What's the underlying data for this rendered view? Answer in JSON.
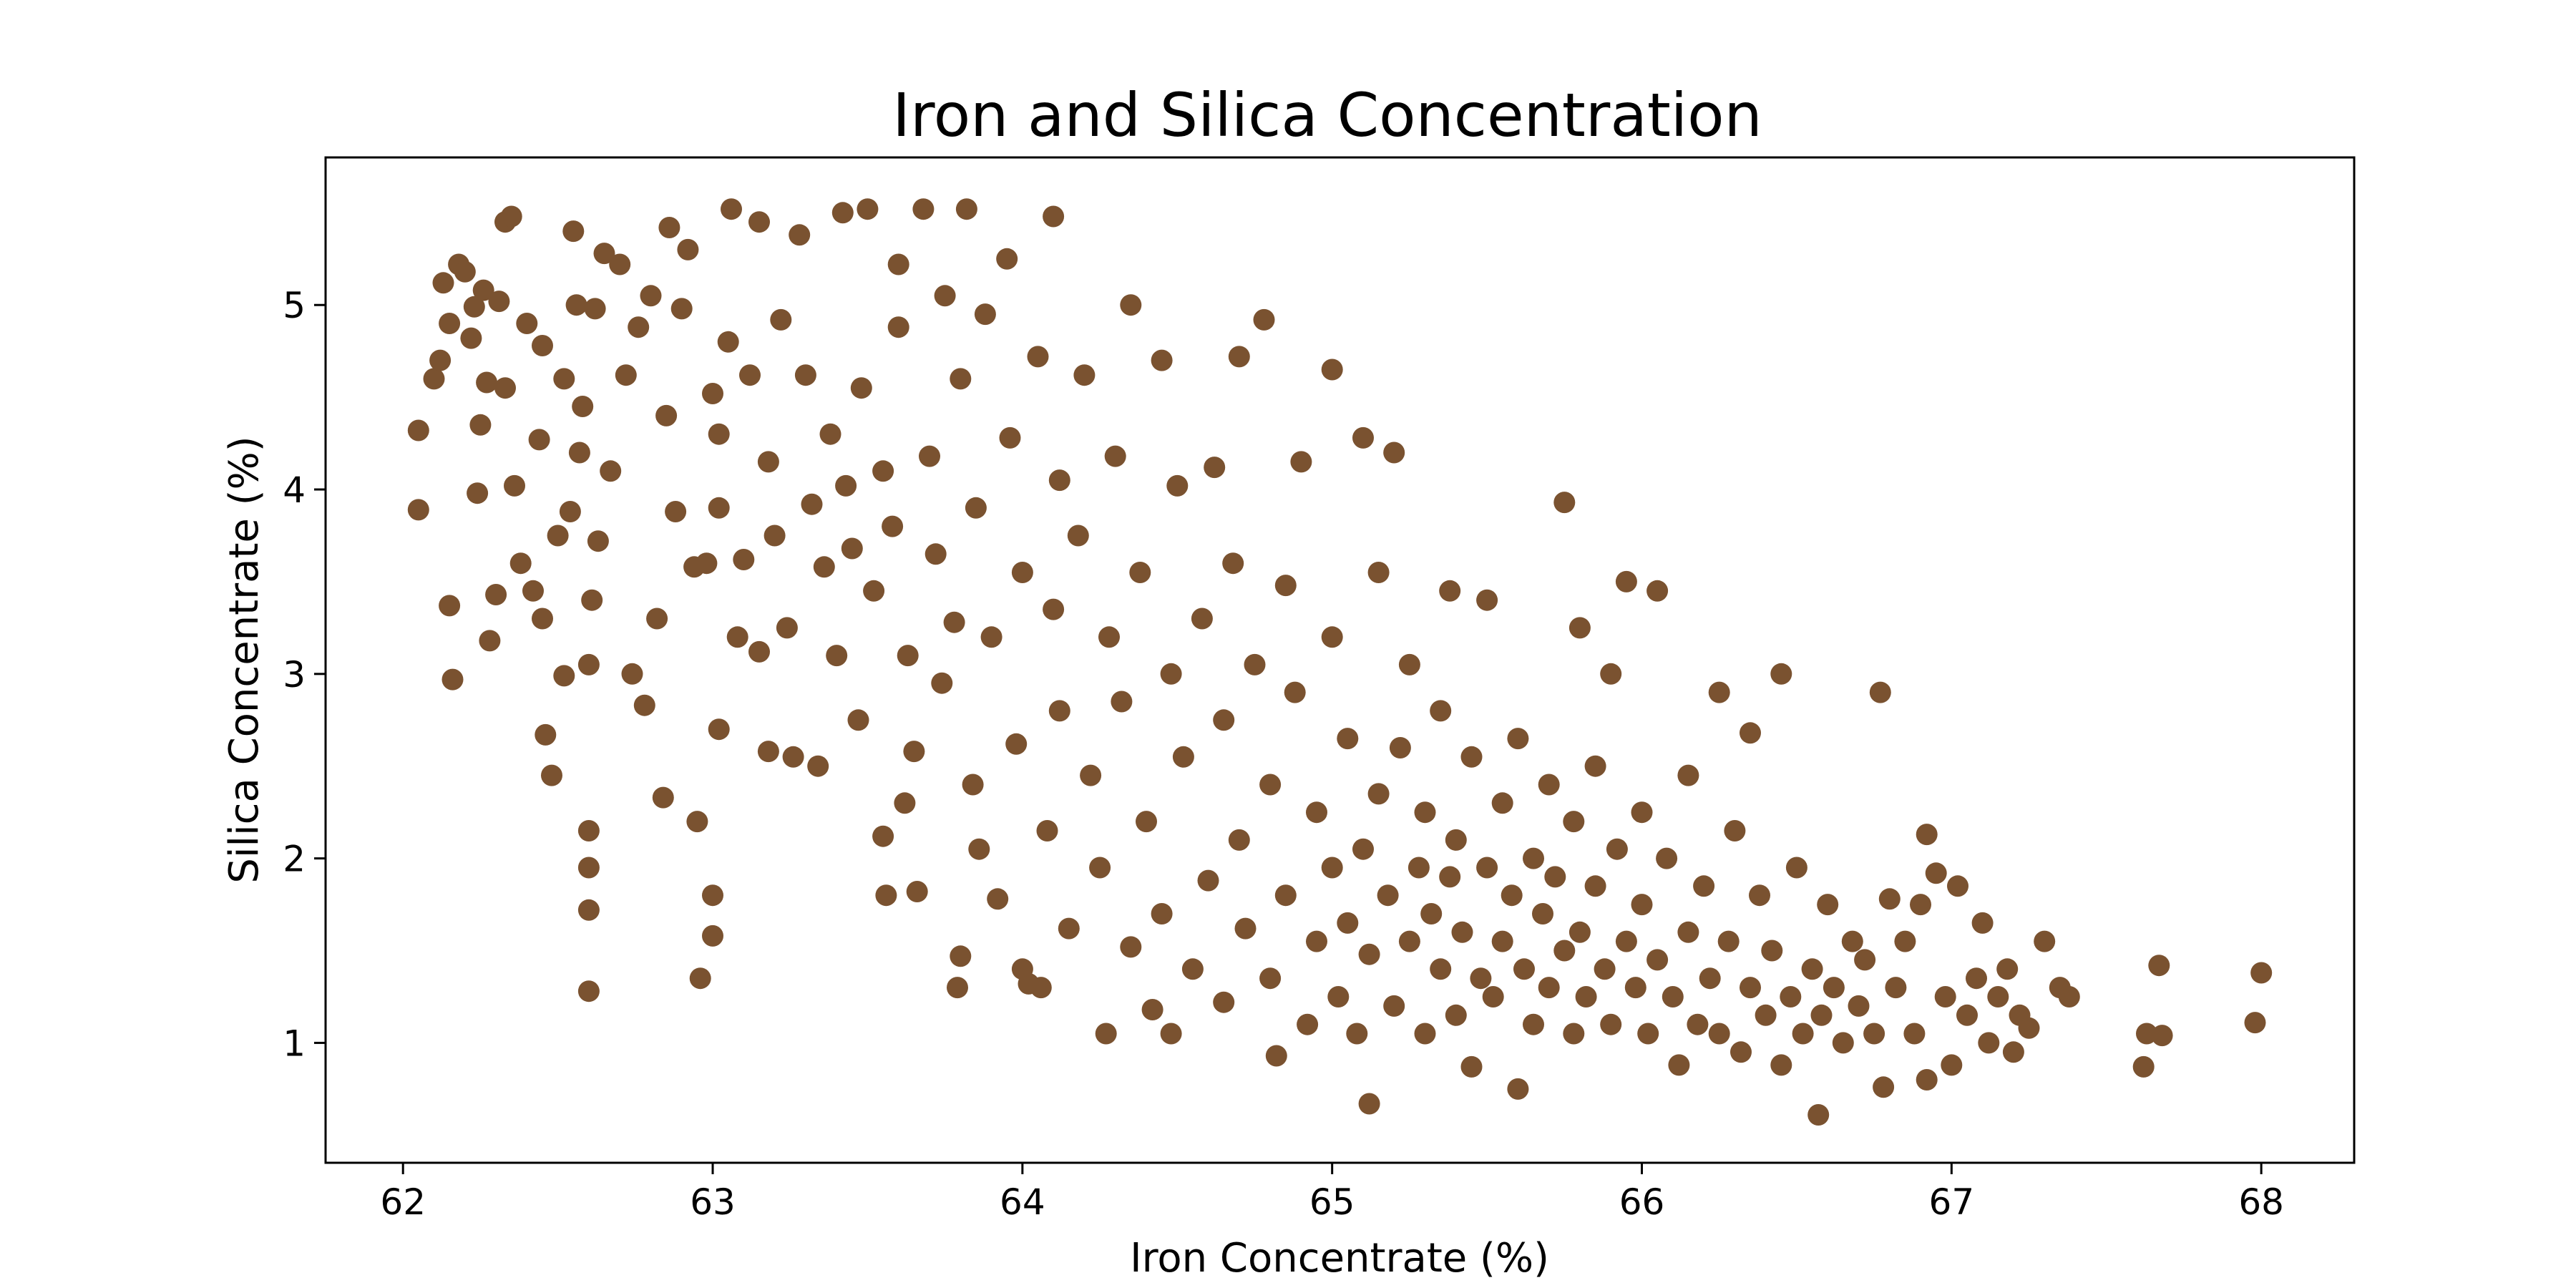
{
  "chart_data": {
    "type": "scatter",
    "title": "Iron and Silica Concentration",
    "xlabel": "Iron Concentrate (%)",
    "ylabel": "Silica Concentrate (%)",
    "xlim": [
      61.75,
      68.3
    ],
    "ylim": [
      0.35,
      5.8
    ],
    "xticks": [
      62,
      63,
      64,
      65,
      66,
      67,
      68
    ],
    "yticks": [
      1,
      2,
      3,
      4,
      5
    ],
    "grid": false,
    "legend": "none",
    "marker_color": "#7a5230",
    "series": [
      {
        "points": [
          [
            62.05,
            4.32
          ],
          [
            62.05,
            3.89
          ],
          [
            62.1,
            4.6
          ],
          [
            62.12,
            4.7
          ],
          [
            62.13,
            5.12
          ],
          [
            62.15,
            4.9
          ],
          [
            62.15,
            3.37
          ],
          [
            62.16,
            2.97
          ],
          [
            62.18,
            5.22
          ],
          [
            62.2,
            5.18
          ],
          [
            62.22,
            4.82
          ],
          [
            62.23,
            4.99
          ],
          [
            62.24,
            3.98
          ],
          [
            62.25,
            4.35
          ],
          [
            62.26,
            5.08
          ],
          [
            62.27,
            4.58
          ],
          [
            62.28,
            3.18
          ],
          [
            62.3,
            3.43
          ],
          [
            62.31,
            5.02
          ],
          [
            62.33,
            4.55
          ],
          [
            62.33,
            5.45
          ],
          [
            62.35,
            5.48
          ],
          [
            62.36,
            4.02
          ],
          [
            62.38,
            3.6
          ],
          [
            62.4,
            4.9
          ],
          [
            62.42,
            3.45
          ],
          [
            62.44,
            4.27
          ],
          [
            62.45,
            3.3
          ],
          [
            62.45,
            4.78
          ],
          [
            62.46,
            2.67
          ],
          [
            62.48,
            2.45
          ],
          [
            62.5,
            3.75
          ],
          [
            62.52,
            4.6
          ],
          [
            62.52,
            2.99
          ],
          [
            62.54,
            3.88
          ],
          [
            62.55,
            5.4
          ],
          [
            62.56,
            5.0
          ],
          [
            62.57,
            4.2
          ],
          [
            62.58,
            4.45
          ],
          [
            62.6,
            3.05
          ],
          [
            62.6,
            2.15
          ],
          [
            62.6,
            1.95
          ],
          [
            62.6,
            1.72
          ],
          [
            62.6,
            1.28
          ],
          [
            62.61,
            3.4
          ],
          [
            62.62,
            4.98
          ],
          [
            62.63,
            3.72
          ],
          [
            62.65,
            5.28
          ],
          [
            62.67,
            4.1
          ],
          [
            62.7,
            5.22
          ],
          [
            62.72,
            4.62
          ],
          [
            62.74,
            3.0
          ],
          [
            62.76,
            4.88
          ],
          [
            62.78,
            2.83
          ],
          [
            62.8,
            5.05
          ],
          [
            62.82,
            3.3
          ],
          [
            62.84,
            2.33
          ],
          [
            62.85,
            4.4
          ],
          [
            62.86,
            5.42
          ],
          [
            62.88,
            3.88
          ],
          [
            62.9,
            4.98
          ],
          [
            62.92,
            5.3
          ],
          [
            62.94,
            3.58
          ],
          [
            62.95,
            2.2
          ],
          [
            62.96,
            1.35
          ],
          [
            62.98,
            3.6
          ],
          [
            63.0,
            4.52
          ],
          [
            63.0,
            1.8
          ],
          [
            63.0,
            1.58
          ],
          [
            63.02,
            4.3
          ],
          [
            63.02,
            3.9
          ],
          [
            63.02,
            2.7
          ],
          [
            63.05,
            4.8
          ],
          [
            63.06,
            5.52
          ],
          [
            63.08,
            3.2
          ],
          [
            63.1,
            3.62
          ],
          [
            63.12,
            4.62
          ],
          [
            63.15,
            5.45
          ],
          [
            63.15,
            3.12
          ],
          [
            63.18,
            4.15
          ],
          [
            63.18,
            2.58
          ],
          [
            63.2,
            3.75
          ],
          [
            63.22,
            4.92
          ],
          [
            63.24,
            3.25
          ],
          [
            63.26,
            2.55
          ],
          [
            63.28,
            5.38
          ],
          [
            63.3,
            4.62
          ],
          [
            63.32,
            3.92
          ],
          [
            63.34,
            2.5
          ],
          [
            63.36,
            3.58
          ],
          [
            63.38,
            4.3
          ],
          [
            63.4,
            3.1
          ],
          [
            63.42,
            5.5
          ],
          [
            63.43,
            4.02
          ],
          [
            63.45,
            3.68
          ],
          [
            63.47,
            2.75
          ],
          [
            63.48,
            4.55
          ],
          [
            63.5,
            5.52
          ],
          [
            63.52,
            3.45
          ],
          [
            63.55,
            4.1
          ],
          [
            63.55,
            2.12
          ],
          [
            63.56,
            1.8
          ],
          [
            63.58,
            3.8
          ],
          [
            63.6,
            5.22
          ],
          [
            63.6,
            4.88
          ],
          [
            63.62,
            2.3
          ],
          [
            63.63,
            3.1
          ],
          [
            63.65,
            2.58
          ],
          [
            63.66,
            1.82
          ],
          [
            63.68,
            5.52
          ],
          [
            63.7,
            4.18
          ],
          [
            63.72,
            3.65
          ],
          [
            63.74,
            2.95
          ],
          [
            63.75,
            5.05
          ],
          [
            63.78,
            3.28
          ],
          [
            63.79,
            1.3
          ],
          [
            63.8,
            1.47
          ],
          [
            63.8,
            4.6
          ],
          [
            63.82,
            5.52
          ],
          [
            63.84,
            2.4
          ],
          [
            63.85,
            3.9
          ],
          [
            63.86,
            2.05
          ],
          [
            63.88,
            4.95
          ],
          [
            63.9,
            3.2
          ],
          [
            63.92,
            1.78
          ],
          [
            63.95,
            5.25
          ],
          [
            63.96,
            4.28
          ],
          [
            63.98,
            2.62
          ],
          [
            64.0,
            3.55
          ],
          [
            64.0,
            1.4
          ],
          [
            64.02,
            1.32
          ],
          [
            64.05,
            4.72
          ],
          [
            64.06,
            1.3
          ],
          [
            64.08,
            2.15
          ],
          [
            64.1,
            3.35
          ],
          [
            64.1,
            5.48
          ],
          [
            64.12,
            4.05
          ],
          [
            64.12,
            2.8
          ],
          [
            64.15,
            1.62
          ],
          [
            64.18,
            3.75
          ],
          [
            64.2,
            4.62
          ],
          [
            64.22,
            2.45
          ],
          [
            64.25,
            1.95
          ],
          [
            64.27,
            1.05
          ],
          [
            64.28,
            3.2
          ],
          [
            64.3,
            4.18
          ],
          [
            64.32,
            2.85
          ],
          [
            64.35,
            5.0
          ],
          [
            64.35,
            1.52
          ],
          [
            64.38,
            3.55
          ],
          [
            64.4,
            2.2
          ],
          [
            64.42,
            1.18
          ],
          [
            64.45,
            4.7
          ],
          [
            64.45,
            1.7
          ],
          [
            64.48,
            3.0
          ],
          [
            64.48,
            1.05
          ],
          [
            64.5,
            4.02
          ],
          [
            64.52,
            2.55
          ],
          [
            64.55,
            1.4
          ],
          [
            64.58,
            3.3
          ],
          [
            64.6,
            1.88
          ],
          [
            64.62,
            4.12
          ],
          [
            64.65,
            2.75
          ],
          [
            64.65,
            1.22
          ],
          [
            64.68,
            3.6
          ],
          [
            64.7,
            4.72
          ],
          [
            64.7,
            2.1
          ],
          [
            64.72,
            1.62
          ],
          [
            64.75,
            3.05
          ],
          [
            64.78,
            4.92
          ],
          [
            64.8,
            2.4
          ],
          [
            64.8,
            1.35
          ],
          [
            64.82,
            0.93
          ],
          [
            64.85,
            3.48
          ],
          [
            64.85,
            1.8
          ],
          [
            64.88,
            2.9
          ],
          [
            64.9,
            4.15
          ],
          [
            64.92,
            1.1
          ],
          [
            64.95,
            2.25
          ],
          [
            64.95,
            1.55
          ],
          [
            65.0,
            4.65
          ],
          [
            65.0,
            3.2
          ],
          [
            65.0,
            1.95
          ],
          [
            65.02,
            1.25
          ],
          [
            65.05,
            2.65
          ],
          [
            65.05,
            1.65
          ],
          [
            65.08,
            1.05
          ],
          [
            65.1,
            4.28
          ],
          [
            65.1,
            2.05
          ],
          [
            65.12,
            0.67
          ],
          [
            65.12,
            1.48
          ],
          [
            65.15,
            3.55
          ],
          [
            65.15,
            2.35
          ],
          [
            65.18,
            1.8
          ],
          [
            65.2,
            4.2
          ],
          [
            65.2,
            1.2
          ],
          [
            65.22,
            2.6
          ],
          [
            65.25,
            1.55
          ],
          [
            65.25,
            3.05
          ],
          [
            65.28,
            1.95
          ],
          [
            65.3,
            1.05
          ],
          [
            65.3,
            2.25
          ],
          [
            65.32,
            1.7
          ],
          [
            65.35,
            2.8
          ],
          [
            65.35,
            1.4
          ],
          [
            65.38,
            3.45
          ],
          [
            65.38,
            1.9
          ],
          [
            65.4,
            2.1
          ],
          [
            65.4,
            1.15
          ],
          [
            65.42,
            1.6
          ],
          [
            65.45,
            2.55
          ],
          [
            65.45,
            0.87
          ],
          [
            65.48,
            1.35
          ],
          [
            65.5,
            1.95
          ],
          [
            65.5,
            3.4
          ],
          [
            65.52,
            1.25
          ],
          [
            65.55,
            2.3
          ],
          [
            65.55,
            1.55
          ],
          [
            65.58,
            1.8
          ],
          [
            65.6,
            0.75
          ],
          [
            65.6,
            2.65
          ],
          [
            65.62,
            1.4
          ],
          [
            65.65,
            2.0
          ],
          [
            65.65,
            1.1
          ],
          [
            65.68,
            1.7
          ],
          [
            65.7,
            2.4
          ],
          [
            65.7,
            1.3
          ],
          [
            65.72,
            1.9
          ],
          [
            65.75,
            3.93
          ],
          [
            65.75,
            1.5
          ],
          [
            65.78,
            2.2
          ],
          [
            65.78,
            1.05
          ],
          [
            65.8,
            3.25
          ],
          [
            65.8,
            1.6
          ],
          [
            65.82,
            1.25
          ],
          [
            65.85,
            2.5
          ],
          [
            65.85,
            1.85
          ],
          [
            65.88,
            1.4
          ],
          [
            65.9,
            3.0
          ],
          [
            65.9,
            1.1
          ],
          [
            65.92,
            2.05
          ],
          [
            65.95,
            3.5
          ],
          [
            65.95,
            1.55
          ],
          [
            65.98,
            1.3
          ],
          [
            66.0,
            2.25
          ],
          [
            66.0,
            1.75
          ],
          [
            66.02,
            1.05
          ],
          [
            66.05,
            3.45
          ],
          [
            66.05,
            1.45
          ],
          [
            66.08,
            2.0
          ],
          [
            66.1,
            1.25
          ],
          [
            66.12,
            0.88
          ],
          [
            66.15,
            2.45
          ],
          [
            66.15,
            1.6
          ],
          [
            66.18,
            1.1
          ],
          [
            66.2,
            1.85
          ],
          [
            66.22,
            1.35
          ],
          [
            66.25,
            2.9
          ],
          [
            66.25,
            1.05
          ],
          [
            66.28,
            1.55
          ],
          [
            66.3,
            2.15
          ],
          [
            66.32,
            0.95
          ],
          [
            66.35,
            2.68
          ],
          [
            66.35,
            1.3
          ],
          [
            66.38,
            1.8
          ],
          [
            66.4,
            1.15
          ],
          [
            66.42,
            1.5
          ],
          [
            66.45,
            3.0
          ],
          [
            66.45,
            0.88
          ],
          [
            66.48,
            1.25
          ],
          [
            66.5,
            1.95
          ],
          [
            66.52,
            1.05
          ],
          [
            66.55,
            1.4
          ],
          [
            66.57,
            0.61
          ],
          [
            66.58,
            1.15
          ],
          [
            66.6,
            1.75
          ],
          [
            66.62,
            1.3
          ],
          [
            66.65,
            1.0
          ],
          [
            66.68,
            1.55
          ],
          [
            66.7,
            1.2
          ],
          [
            66.72,
            1.45
          ],
          [
            66.75,
            1.05
          ],
          [
            66.77,
            2.9
          ],
          [
            66.78,
            0.76
          ],
          [
            66.8,
            1.78
          ],
          [
            66.82,
            1.3
          ],
          [
            66.85,
            1.55
          ],
          [
            66.88,
            1.05
          ],
          [
            66.9,
            1.75
          ],
          [
            66.92,
            0.8
          ],
          [
            66.92,
            2.13
          ],
          [
            66.95,
            1.92
          ],
          [
            66.98,
            1.25
          ],
          [
            67.0,
            0.88
          ],
          [
            67.02,
            1.85
          ],
          [
            67.05,
            1.15
          ],
          [
            67.08,
            1.35
          ],
          [
            67.1,
            1.65
          ],
          [
            67.12,
            1.0
          ],
          [
            67.15,
            1.25
          ],
          [
            67.18,
            1.4
          ],
          [
            67.2,
            0.95
          ],
          [
            67.22,
            1.15
          ],
          [
            67.25,
            1.08
          ],
          [
            67.3,
            1.55
          ],
          [
            67.35,
            1.3
          ],
          [
            67.38,
            1.25
          ],
          [
            67.62,
            0.87
          ],
          [
            67.63,
            1.05
          ],
          [
            67.67,
            1.42
          ],
          [
            67.68,
            1.04
          ],
          [
            67.98,
            1.11
          ],
          [
            68.0,
            1.38
          ]
        ]
      }
    ]
  }
}
